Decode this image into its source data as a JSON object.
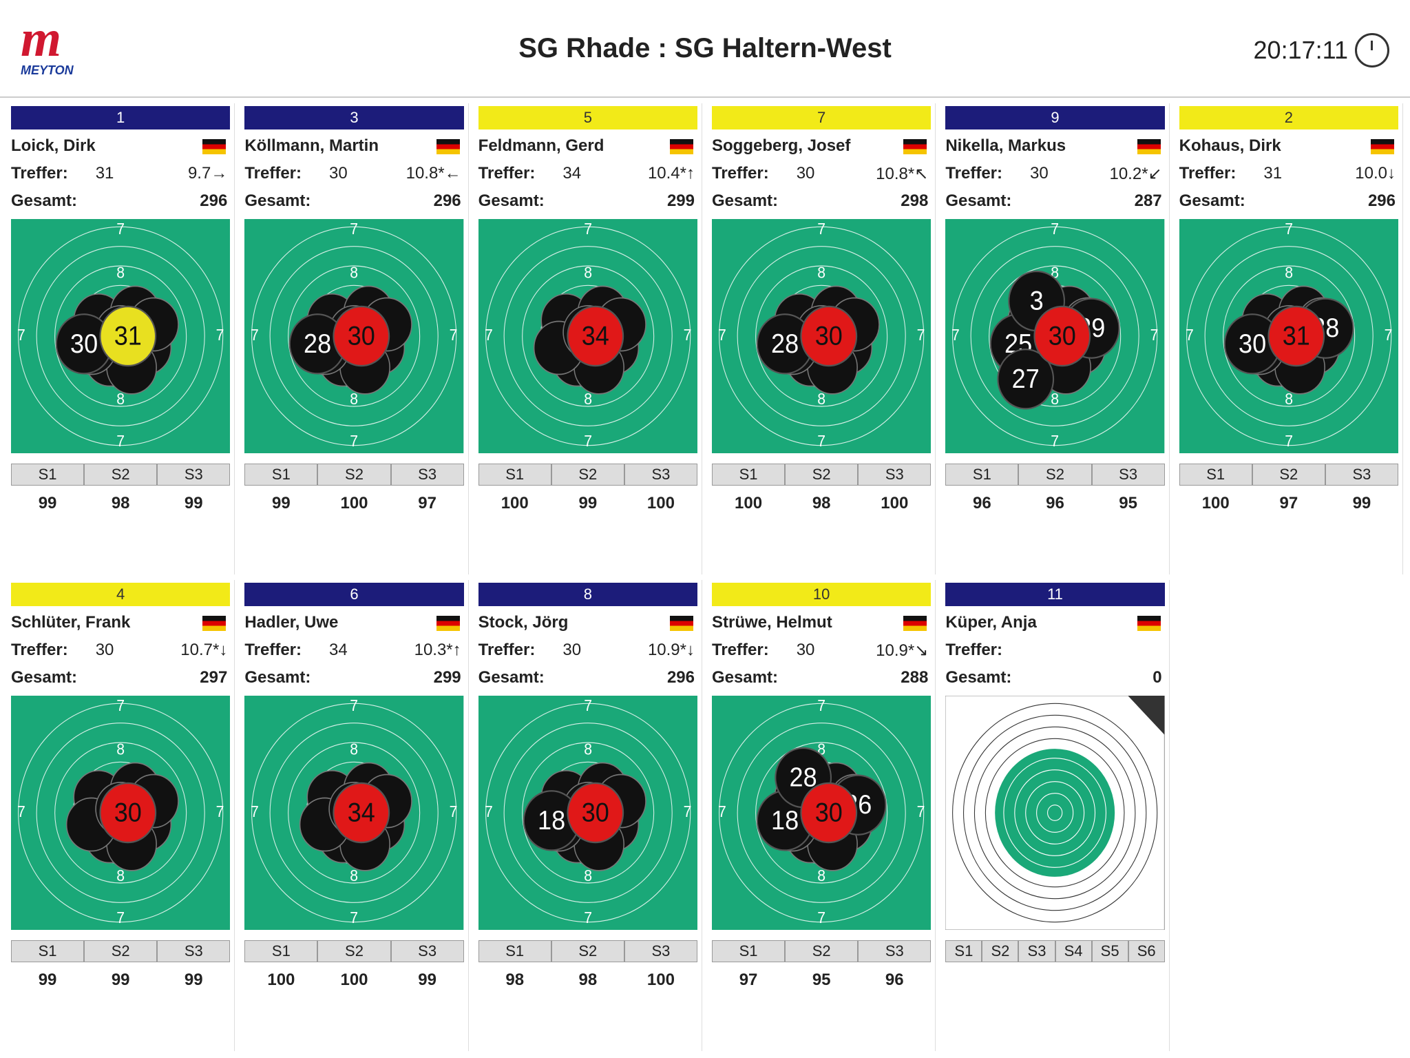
{
  "header": {
    "logo": "MEYTON",
    "title": "SG Rhade : SG Haltern-West",
    "time": "20:17:11"
  },
  "labels": {
    "hits": "Treffer:",
    "total": "Gesamt:"
  },
  "target_ring_labels": [
    "7",
    "8"
  ],
  "shooters": [
    {
      "lane": "1",
      "color": "blue",
      "name": "Loick, Dirk",
      "hits": 31,
      "last_shot": "9.7→",
      "total": 296,
      "series": [
        {
          "label": "S1",
          "score": 99
        },
        {
          "label": "S2",
          "score": 98
        },
        {
          "label": "S3",
          "score": 99
        }
      ],
      "shots": [
        {
          "label": "30",
          "color": "black"
        },
        {
          "label": "31",
          "color": "yellow"
        }
      ]
    },
    {
      "lane": "3",
      "color": "blue",
      "name": "Köllmann, Martin",
      "hits": 30,
      "last_shot": "10.8*←",
      "total": 296,
      "series": [
        {
          "label": "S1",
          "score": 99
        },
        {
          "label": "S2",
          "score": 100
        },
        {
          "label": "S3",
          "score": 97
        }
      ],
      "shots": [
        {
          "label": "28",
          "color": "black"
        },
        {
          "label": "30",
          "color": "red"
        }
      ]
    },
    {
      "lane": "5",
      "color": "yellow",
      "name": "Feldmann, Gerd",
      "hits": 34,
      "last_shot": "10.4*↑",
      "total": 299,
      "series": [
        {
          "label": "S1",
          "score": 100
        },
        {
          "label": "S2",
          "score": 99
        },
        {
          "label": "S3",
          "score": 100
        }
      ],
      "shots": [
        {
          "label": "34",
          "color": "red"
        }
      ]
    },
    {
      "lane": "7",
      "color": "yellow",
      "name": "Soggeberg, Josef",
      "hits": 30,
      "last_shot": "10.8*↖",
      "total": 298,
      "series": [
        {
          "label": "S1",
          "score": 100
        },
        {
          "label": "S2",
          "score": 98
        },
        {
          "label": "S3",
          "score": 100
        }
      ],
      "shots": [
        {
          "label": "28",
          "color": "black"
        },
        {
          "label": "30",
          "color": "red"
        }
      ]
    },
    {
      "lane": "9",
      "color": "blue",
      "name": "Nikella, Markus",
      "hits": 30,
      "last_shot": "10.2*↙",
      "total": 287,
      "series": [
        {
          "label": "S1",
          "score": 96
        },
        {
          "label": "S2",
          "score": 96
        },
        {
          "label": "S3",
          "score": 95
        }
      ],
      "shots": [
        {
          "label": "25",
          "color": "black"
        },
        {
          "label": "29",
          "color": "black"
        },
        {
          "label": "3",
          "color": "black"
        },
        {
          "label": "27",
          "color": "black"
        },
        {
          "label": "30",
          "color": "red"
        }
      ]
    },
    {
      "lane": "2",
      "color": "yellow",
      "name": "Kohaus, Dirk",
      "hits": 31,
      "last_shot": "10.0↓",
      "total": 296,
      "series": [
        {
          "label": "S1",
          "score": 100
        },
        {
          "label": "S2",
          "score": 97
        },
        {
          "label": "S3",
          "score": 99
        }
      ],
      "shots": [
        {
          "label": "30",
          "color": "black"
        },
        {
          "label": "28",
          "color": "black"
        },
        {
          "label": "31",
          "color": "red"
        }
      ]
    },
    {
      "lane": "4",
      "color": "yellow",
      "name": "Schlüter, Frank",
      "hits": 30,
      "last_shot": "10.7*↓",
      "total": 297,
      "series": [
        {
          "label": "S1",
          "score": 99
        },
        {
          "label": "S2",
          "score": 99
        },
        {
          "label": "S3",
          "score": 99
        }
      ],
      "shots": [
        {
          "label": "30",
          "color": "red"
        }
      ]
    },
    {
      "lane": "6",
      "color": "blue",
      "name": "Hadler, Uwe",
      "hits": 34,
      "last_shot": "10.3*↑",
      "total": 299,
      "series": [
        {
          "label": "S1",
          "score": 100
        },
        {
          "label": "S2",
          "score": 100
        },
        {
          "label": "S3",
          "score": 99
        }
      ],
      "shots": [
        {
          "label": "34",
          "color": "red"
        }
      ]
    },
    {
      "lane": "8",
      "color": "blue",
      "name": "Stock, Jörg",
      "hits": 30,
      "last_shot": "10.9*↓",
      "total": 296,
      "series": [
        {
          "label": "S1",
          "score": 98
        },
        {
          "label": "S2",
          "score": 98
        },
        {
          "label": "S3",
          "score": 100
        }
      ],
      "shots": [
        {
          "label": "18",
          "color": "black"
        },
        {
          "label": "30",
          "color": "red"
        }
      ]
    },
    {
      "lane": "10",
      "color": "yellow",
      "name": "Strüwe, Helmut",
      "hits": 30,
      "last_shot": "10.9*↘",
      "total": 288,
      "series": [
        {
          "label": "S1",
          "score": 97
        },
        {
          "label": "S2",
          "score": 95
        },
        {
          "label": "S3",
          "score": 96
        }
      ],
      "shots": [
        {
          "label": "18",
          "color": "black"
        },
        {
          "label": "26",
          "color": "black"
        },
        {
          "label": "28",
          "color": "black"
        },
        {
          "label": "30",
          "color": "red"
        }
      ]
    },
    {
      "lane": "11",
      "color": "blue",
      "name": "Küper, Anja",
      "total": 0,
      "target_style": "paper",
      "series": [
        {
          "label": "S1"
        },
        {
          "label": "S2"
        },
        {
          "label": "S3"
        },
        {
          "label": "S4"
        },
        {
          "label": "S5"
        },
        {
          "label": "S6"
        }
      ],
      "shots": []
    }
  ]
}
